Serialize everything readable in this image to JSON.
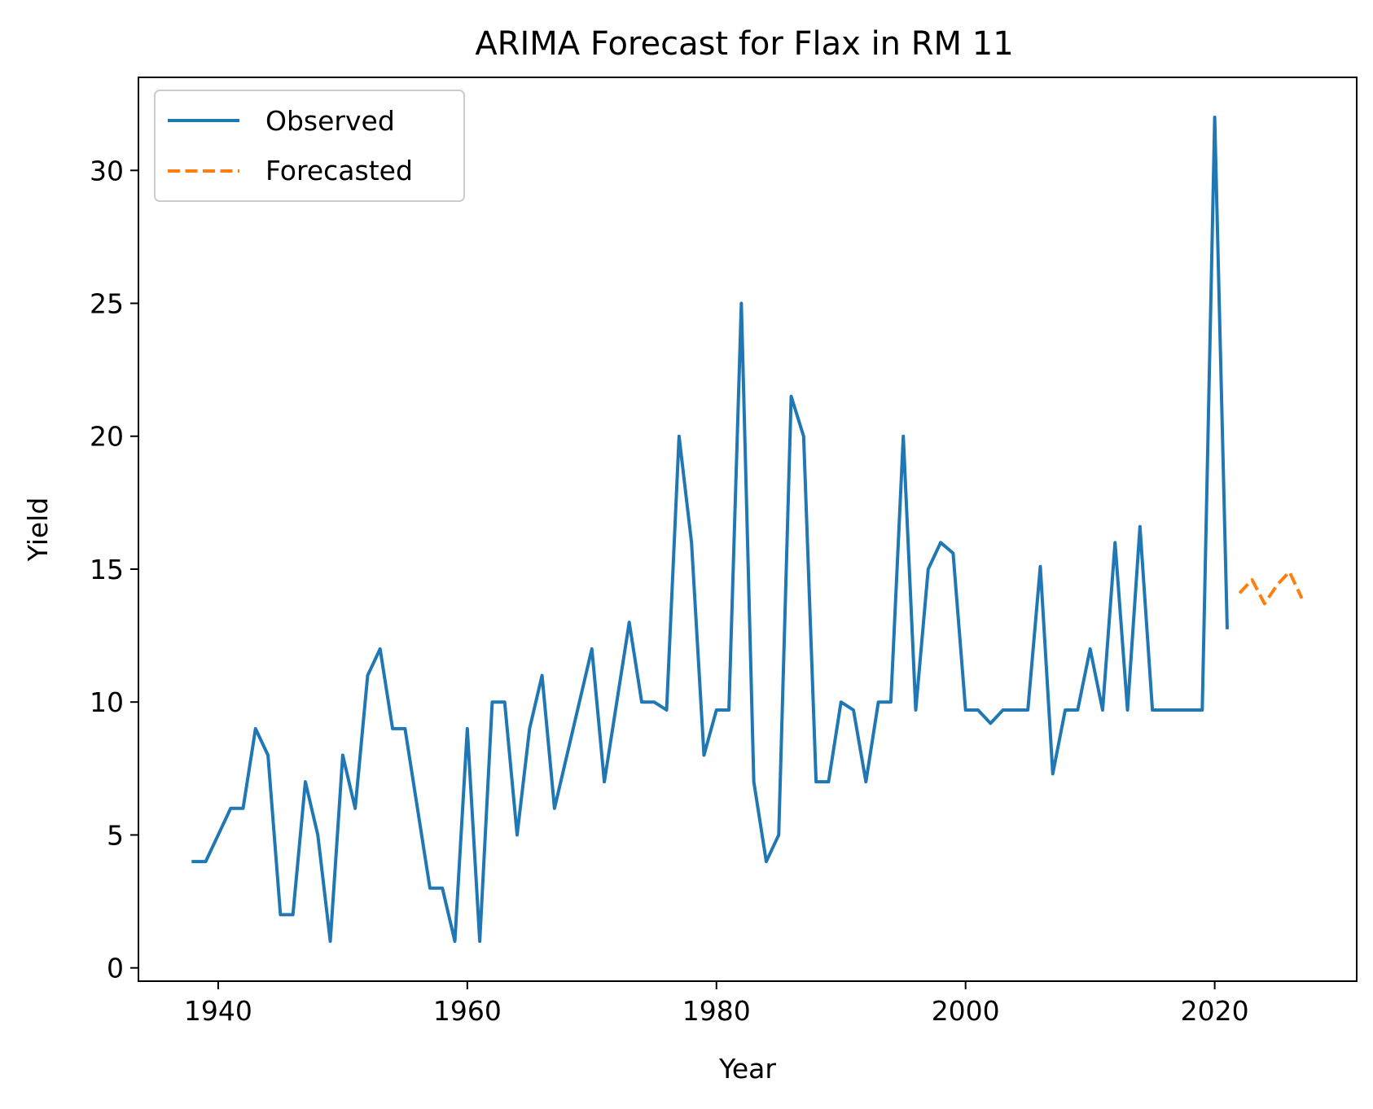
{
  "chart_data": {
    "type": "line",
    "title": "ARIMA Forecast for Flax in RM 11",
    "xlabel": "Year",
    "ylabel": "Yield",
    "xlim": [
      1933.6,
      2031.4
    ],
    "ylim": [
      -0.5,
      33.5
    ],
    "xticks": [
      1940,
      1960,
      1980,
      2000,
      2020
    ],
    "yticks": [
      0,
      5,
      10,
      15,
      20,
      25,
      30
    ],
    "grid": false,
    "legend_position": "upper left",
    "series": [
      {
        "name": "Observed",
        "color": "#1f77b4",
        "style": "solid",
        "x": [
          1938,
          1939,
          1940,
          1941,
          1942,
          1943,
          1944,
          1945,
          1946,
          1947,
          1948,
          1949,
          1950,
          1951,
          1952,
          1953,
          1954,
          1955,
          1956,
          1957,
          1958,
          1959,
          1960,
          1961,
          1962,
          1963,
          1964,
          1965,
          1966,
          1967,
          1968,
          1969,
          1970,
          1971,
          1972,
          1973,
          1974,
          1975,
          1976,
          1977,
          1978,
          1979,
          1980,
          1981,
          1982,
          1983,
          1984,
          1985,
          1986,
          1987,
          1988,
          1989,
          1990,
          1991,
          1992,
          1993,
          1994,
          1995,
          1996,
          1997,
          1998,
          1999,
          2000,
          2001,
          2002,
          2003,
          2004,
          2005,
          2006,
          2007,
          2008,
          2009,
          2010,
          2011,
          2012,
          2013,
          2014,
          2015,
          2016,
          2017,
          2018,
          2019,
          2020,
          2021
        ],
        "y": [
          4,
          4,
          5,
          6,
          6,
          9,
          8,
          2,
          2,
          7,
          5,
          1,
          8,
          6,
          11,
          12,
          9,
          9,
          6,
          3,
          3,
          1,
          9,
          1,
          10,
          10,
          5,
          9,
          11,
          6,
          8,
          10,
          12,
          7,
          10,
          13,
          10,
          10,
          9.7,
          20,
          16,
          8,
          9.7,
          9.7,
          25,
          7,
          4,
          5,
          21.5,
          20,
          7,
          7,
          10,
          9.7,
          7,
          10,
          10,
          20,
          9.7,
          15,
          16,
          15.6,
          9.7,
          9.7,
          9.2,
          9.7,
          9.7,
          9.7,
          15.1,
          7.3,
          9.7,
          9.7,
          12,
          9.7,
          16,
          9.7,
          16.6,
          9.7,
          9.7,
          9.7,
          9.7,
          9.7,
          32,
          12.8
        ]
      },
      {
        "name": "Forecasted",
        "color": "#ff7f0e",
        "style": "dashed",
        "x": [
          2022,
          2023,
          2024,
          2025,
          2026,
          2027
        ],
        "y": [
          14.1,
          14.6,
          13.7,
          14.4,
          14.9,
          13.9
        ]
      }
    ]
  }
}
